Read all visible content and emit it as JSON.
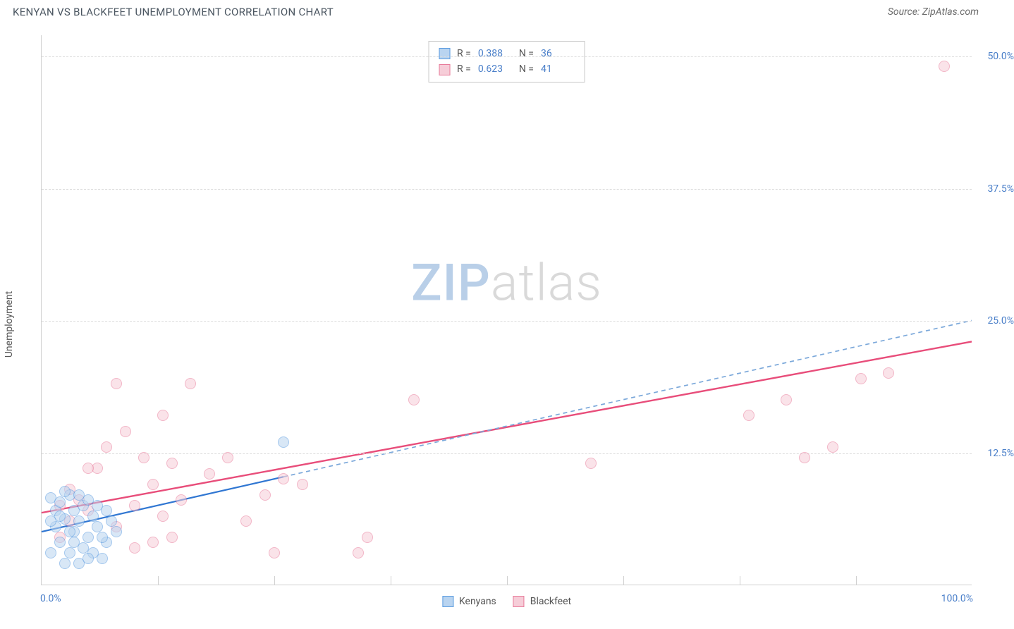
{
  "title": "KENYAN VS BLACKFEET UNEMPLOYMENT CORRELATION CHART",
  "source": "Source: ZipAtlas.com",
  "ylabel": "Unemployment",
  "watermark_zip": "ZIP",
  "watermark_atlas": "atlas",
  "chart": {
    "type": "scatter",
    "xlim": [
      0,
      100
    ],
    "ylim": [
      0,
      52
    ],
    "x_ticks_minor": [
      12.5,
      25,
      37.5,
      50,
      62.5,
      75,
      87.5
    ],
    "y_gridlines": [
      12.5,
      25,
      37.5,
      50
    ],
    "x_tick_labels": [
      {
        "x": 0,
        "text": "0.0%",
        "align": "left"
      },
      {
        "x": 100,
        "text": "100.0%",
        "align": "right"
      }
    ],
    "y_tick_labels": [
      {
        "y": 12.5,
        "text": "12.5%"
      },
      {
        "y": 25,
        "text": "25.0%"
      },
      {
        "y": 37.5,
        "text": "37.5%"
      },
      {
        "y": 50,
        "text": "50.0%"
      }
    ],
    "background_color": "#ffffff",
    "grid_color": "#dcdcdc",
    "marker_radius": 8,
    "marker_stroke_width": 1.2,
    "series": {
      "kenyans": {
        "label": "Kenyans",
        "fill": "#b9d4f0",
        "stroke": "#5a9be0",
        "opacity": 0.55,
        "R": "0.388",
        "N": "36",
        "trend": {
          "x1": 0,
          "y1": 5.0,
          "x2": 26,
          "y2": 10.2,
          "x2_ext": 100,
          "y2_ext": 25.0,
          "solid_color": "#2f76d2",
          "dash_color": "#7ba8da",
          "width": 2.2,
          "dash": "6,5"
        },
        "points": [
          {
            "x": 1.0,
            "y": 8.2
          },
          {
            "x": 1.5,
            "y": 7.0
          },
          {
            "x": 2.0,
            "y": 7.8
          },
          {
            "x": 2.5,
            "y": 6.2
          },
          {
            "x": 3.0,
            "y": 8.5
          },
          {
            "x": 3.5,
            "y": 5.0
          },
          {
            "x": 4.0,
            "y": 6.0
          },
          {
            "x": 2.0,
            "y": 4.0
          },
          {
            "x": 4.5,
            "y": 7.5
          },
          {
            "x": 5.0,
            "y": 4.5
          },
          {
            "x": 1.0,
            "y": 3.0
          },
          {
            "x": 3.0,
            "y": 3.0
          },
          {
            "x": 5.5,
            "y": 3.0
          },
          {
            "x": 6.0,
            "y": 5.5
          },
          {
            "x": 2.5,
            "y": 2.0
          },
          {
            "x": 4.0,
            "y": 2.0
          },
          {
            "x": 6.5,
            "y": 2.5
          },
          {
            "x": 7.0,
            "y": 4.0
          },
          {
            "x": 1.5,
            "y": 5.5
          },
          {
            "x": 3.5,
            "y": 7.0
          },
          {
            "x": 5.0,
            "y": 8.0
          },
          {
            "x": 6.0,
            "y": 7.5
          },
          {
            "x": 7.5,
            "y": 6.0
          },
          {
            "x": 4.5,
            "y": 3.5
          },
          {
            "x": 2.0,
            "y": 6.5
          },
          {
            "x": 3.0,
            "y": 5.0
          },
          {
            "x": 5.5,
            "y": 6.5
          },
          {
            "x": 6.5,
            "y": 4.5
          },
          {
            "x": 1.0,
            "y": 6.0
          },
          {
            "x": 7.0,
            "y": 7.0
          },
          {
            "x": 8.0,
            "y": 5.0
          },
          {
            "x": 4.0,
            "y": 8.5
          },
          {
            "x": 26.0,
            "y": 13.5
          },
          {
            "x": 2.5,
            "y": 8.8
          },
          {
            "x": 5.0,
            "y": 2.5
          },
          {
            "x": 3.5,
            "y": 4.0
          }
        ]
      },
      "blackfeet": {
        "label": "Blackfeet",
        "fill": "#f6cdd8",
        "stroke": "#e87b9a",
        "opacity": 0.55,
        "R": "0.623",
        "N": "41",
        "trend": {
          "x1": 0,
          "y1": 6.8,
          "x2": 100,
          "y2": 23.0,
          "color": "#e84d7a",
          "width": 2.4
        },
        "points": [
          {
            "x": 2,
            "y": 7.5
          },
          {
            "x": 3,
            "y": 9.0
          },
          {
            "x": 4,
            "y": 8.0
          },
          {
            "x": 5,
            "y": 7.0
          },
          {
            "x": 3,
            "y": 6.0
          },
          {
            "x": 6,
            "y": 11.0
          },
          {
            "x": 7,
            "y": 13.0
          },
          {
            "x": 8,
            "y": 19.0
          },
          {
            "x": 9,
            "y": 14.5
          },
          {
            "x": 10,
            "y": 7.5
          },
          {
            "x": 11,
            "y": 12.0
          },
          {
            "x": 12,
            "y": 9.5
          },
          {
            "x": 12,
            "y": 4.0
          },
          {
            "x": 13,
            "y": 16.0
          },
          {
            "x": 14,
            "y": 11.5
          },
          {
            "x": 15,
            "y": 8.0
          },
          {
            "x": 16,
            "y": 19.0
          },
          {
            "x": 10,
            "y": 3.5
          },
          {
            "x": 13,
            "y": 6.5
          },
          {
            "x": 14,
            "y": 4.5
          },
          {
            "x": 18,
            "y": 10.5
          },
          {
            "x": 20,
            "y": 12.0
          },
          {
            "x": 22,
            "y": 6.0
          },
          {
            "x": 24,
            "y": 8.5
          },
          {
            "x": 25,
            "y": 3.0
          },
          {
            "x": 26,
            "y": 10.0
          },
          {
            "x": 28,
            "y": 9.5
          },
          {
            "x": 34,
            "y": 3.0
          },
          {
            "x": 35,
            "y": 4.5
          },
          {
            "x": 40,
            "y": 17.5
          },
          {
            "x": 59,
            "y": 11.5
          },
          {
            "x": 76,
            "y": 16.0
          },
          {
            "x": 80,
            "y": 17.5
          },
          {
            "x": 82,
            "y": 12.0
          },
          {
            "x": 85,
            "y": 13.0
          },
          {
            "x": 88,
            "y": 19.5
          },
          {
            "x": 91,
            "y": 20.0
          },
          {
            "x": 97,
            "y": 49.0
          },
          {
            "x": 5,
            "y": 11.0
          },
          {
            "x": 8,
            "y": 5.5
          },
          {
            "x": 2,
            "y": 4.5
          }
        ]
      }
    }
  },
  "legend_top": {
    "r_label": "R =",
    "n_label": "N ="
  }
}
